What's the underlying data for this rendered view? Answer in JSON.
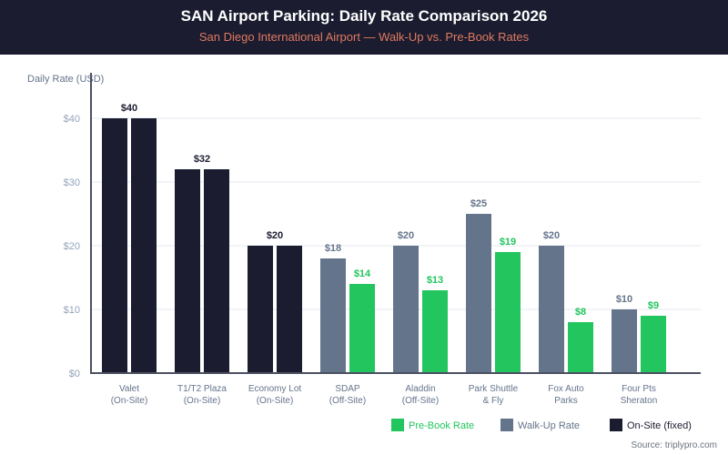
{
  "header": {
    "title": "SAN Airport Parking: Daily Rate Comparison 2026",
    "subtitle": "San Diego International Airport — Walk-Up vs. Pre-Book Rates"
  },
  "source": "Source: triplypro.com",
  "colors": {
    "header_bg": "#1b1c30",
    "subtitle": "#e07a5f",
    "on_site": "#1b1c30",
    "walk_up": "#64748b",
    "pre_book": "#22c55e"
  },
  "chart_data": {
    "type": "bar",
    "title": "SAN Airport Parking: Daily Rate Comparison 2026",
    "subtitle": "San Diego International Airport — Walk-Up vs. Pre-Book Rates",
    "xlabel": "",
    "ylabel": "Daily Rate (USD)",
    "ylim": [
      0,
      40
    ],
    "yticks": [
      0,
      10,
      20,
      30,
      40
    ],
    "ytick_labels": [
      "$0",
      "$10",
      "$20",
      "$30",
      "$40"
    ],
    "grid": true,
    "legend_position": "bottom-right",
    "categories": [
      [
        "Valet",
        "(On-Site)"
      ],
      [
        "T1/T2 Plaza",
        "(On-Site)"
      ],
      [
        "Economy Lot",
        "(On-Site)"
      ],
      [
        "SDAP",
        "(Off-Site)"
      ],
      [
        "Aladdin",
        "(Off-Site)"
      ],
      [
        "Park Shuttle",
        "& Fly"
      ],
      [
        "Fox Auto",
        "Parks"
      ],
      [
        "Four Pts",
        "Sheraton"
      ]
    ],
    "groups": [
      {
        "kind": "on_site",
        "walk_up": 40,
        "pre_book": 40,
        "label": "$40"
      },
      {
        "kind": "on_site",
        "walk_up": 32,
        "pre_book": 32,
        "label": "$32"
      },
      {
        "kind": "on_site",
        "walk_up": 20,
        "pre_book": 20,
        "label": "$20"
      },
      {
        "kind": "off_site",
        "walk_up": 18,
        "pre_book": 14,
        "walk_label": "$18",
        "pre_label": "$14"
      },
      {
        "kind": "off_site",
        "walk_up": 20,
        "pre_book": 13,
        "walk_label": "$20",
        "pre_label": "$13"
      },
      {
        "kind": "off_site",
        "walk_up": 25,
        "pre_book": 19,
        "walk_label": "$25",
        "pre_label": "$19"
      },
      {
        "kind": "off_site",
        "walk_up": 20,
        "pre_book": 8,
        "walk_label": "$20",
        "pre_label": "$8"
      },
      {
        "kind": "off_site",
        "walk_up": 10,
        "pre_book": 9,
        "walk_label": "$10",
        "pre_label": "$9"
      }
    ],
    "series": [
      {
        "name": "Walk-Up Rate",
        "values": [
          40,
          32,
          20,
          18,
          20,
          25,
          20,
          10
        ]
      },
      {
        "name": "Pre-Book Rate",
        "values": [
          40,
          32,
          20,
          14,
          13,
          19,
          8,
          9
        ]
      }
    ],
    "legend": [
      {
        "name": "Pre-Book Rate",
        "color": "#22c55e"
      },
      {
        "name": "Walk-Up Rate",
        "color": "#64748b"
      },
      {
        "name": "On-Site (fixed)",
        "color": "#1b1c30"
      }
    ]
  }
}
